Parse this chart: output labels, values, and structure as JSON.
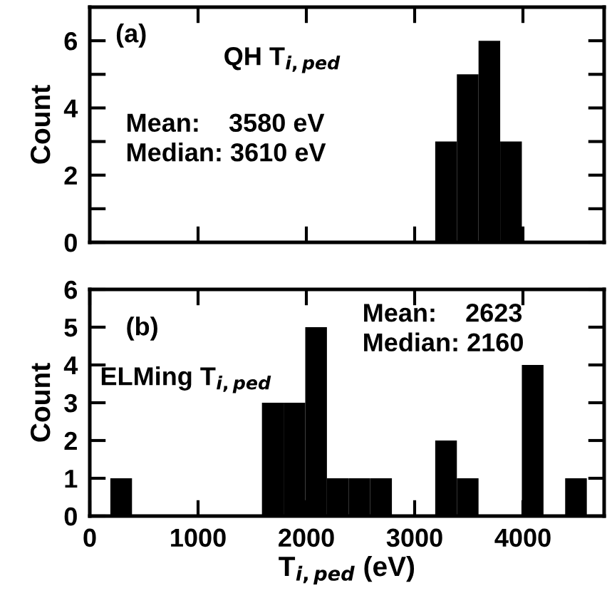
{
  "chart_data": [
    {
      "type": "histogram",
      "ylabel": "Count",
      "annotations": [
        "(a)",
        "QH T$_{i,ped}$",
        "Mean:    3580 eV\nMedian: 3610 eV"
      ],
      "bins": [
        3190,
        3390,
        3590,
        3790,
        3990
      ],
      "values": [
        3,
        5,
        6,
        3
      ],
      "color": "#000000",
      "xlim": [
        0,
        4750
      ],
      "xticks": [
        {
          "value": 1000,
          "label": null
        },
        {
          "value": 2000,
          "label": null
        },
        {
          "value": 3000,
          "label": null
        },
        {
          "value": 4000,
          "label": null
        }
      ],
      "ylim": [
        0,
        7
      ],
      "yticks": [
        0,
        {
          "value": 1,
          "label": null
        },
        2,
        {
          "value": 3,
          "label": null
        },
        4,
        {
          "value": 5,
          "label": null
        },
        6
      ],
      "tick_labels": "y",
      "grid": false,
      "legend": false
    },
    {
      "type": "histogram",
      "xlabel": "T$_{i,ped}$ (eV)",
      "ylabel": "Count",
      "annotations": [
        "(b)",
        "ELMing T$_{i,ped}$",
        "Mean:    2623\nMedian: 2160"
      ],
      "bins": [
        190,
        390,
        590,
        790,
        990,
        1190,
        1390,
        1590,
        1790,
        1990,
        2190,
        2390,
        2590,
        2790,
        2990,
        3190,
        3390,
        3590,
        3790,
        3990,
        4190,
        4390,
        4590
      ],
      "values": [
        1,
        0,
        0,
        0,
        0,
        0,
        0,
        3,
        3,
        5,
        1,
        1,
        1,
        0,
        0,
        2,
        1,
        0,
        0,
        4,
        0,
        1
      ],
      "color": "#000000",
      "xlim": [
        0,
        4750
      ],
      "xticks": [
        0,
        1000,
        2000,
        3000,
        4000
      ],
      "ylim": [
        0,
        6
      ],
      "yticks": [
        0,
        1,
        2,
        3,
        4,
        5,
        6
      ],
      "grid": false,
      "legend": false
    }
  ]
}
